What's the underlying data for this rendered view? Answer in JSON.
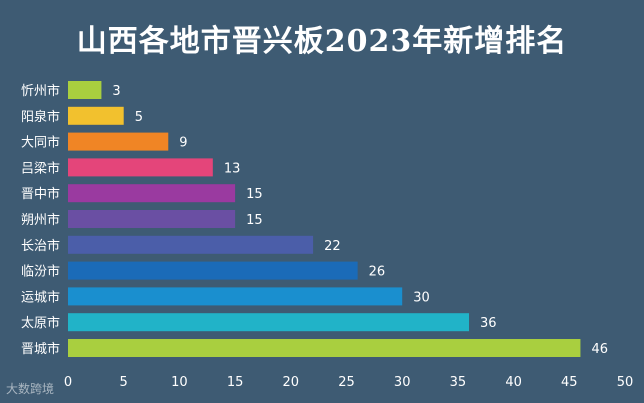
{
  "chart_data": {
    "type": "bar",
    "orientation": "horizontal",
    "title": "山西各地市晋兴板2023年新增排名",
    "categories": [
      "忻州市",
      "阳泉市",
      "大同市",
      "吕梁市",
      "晋中市",
      "朔州市",
      "长治市",
      "临汾市",
      "运城市",
      "太原市",
      "晋城市"
    ],
    "values": [
      3,
      5,
      9,
      13,
      15,
      15,
      22,
      26,
      30,
      36,
      46
    ],
    "colors": [
      "#a9cf3f",
      "#f2c12e",
      "#f08525",
      "#e4457a",
      "#9a3aa0",
      "#6a4fa3",
      "#4b5ea9",
      "#1b6bb8",
      "#1a8fcf",
      "#21b3c8",
      "#a9cf3f"
    ],
    "xticks": [
      0,
      5,
      10,
      15,
      20,
      25,
      30,
      35,
      40,
      45,
      50
    ],
    "xlim": [
      0,
      50
    ],
    "grid": false,
    "data_labels": true
  },
  "watermark": "大数跨境",
  "colors": {
    "background": "#3e5b73",
    "text": "#ffffff"
  }
}
